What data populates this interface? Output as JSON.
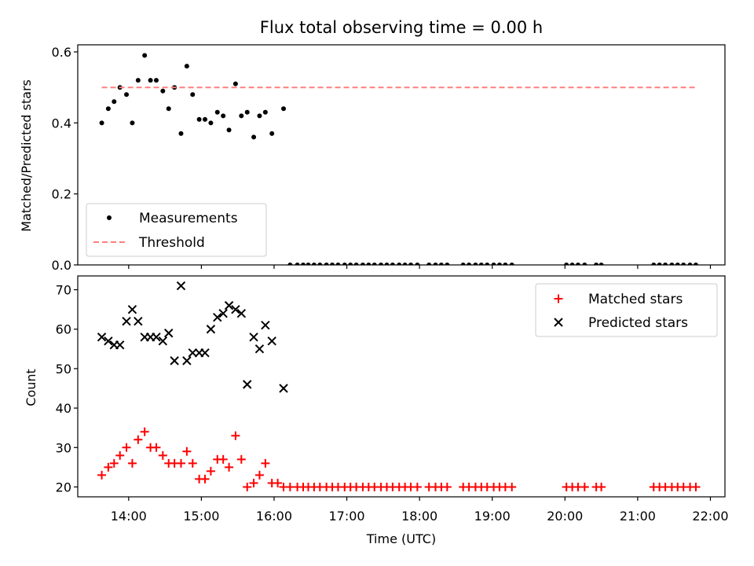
{
  "figure": {
    "title": "Flux total observing time = 0.00 h",
    "xlabel": "Time (UTC)",
    "xticks": [
      "14:00",
      "15:00",
      "16:00",
      "17:00",
      "18:00",
      "19:00",
      "20:00",
      "21:00",
      "22:00"
    ]
  },
  "chart_data": [
    {
      "type": "scatter",
      "name": "ratio-panel",
      "ylabel": "Matched/Predicted stars",
      "ylim": [
        0,
        0.62
      ],
      "yticks": [
        "0.0",
        "0.2",
        "0.4",
        "0.6"
      ],
      "ytick_values": [
        0,
        0.2,
        0.4,
        0.6
      ],
      "xlim_hours": [
        13.3,
        22.2
      ],
      "legend": {
        "placement": "lower-left",
        "entries": [
          "Measurements",
          "Threshold"
        ]
      },
      "series": [
        {
          "name": "Measurements",
          "kind": "points",
          "color": "#000000",
          "x": [
            13.63,
            13.72,
            13.8,
            13.88,
            13.97,
            14.05,
            14.13,
            14.22,
            14.3,
            14.38,
            14.47,
            14.55,
            14.63,
            14.72,
            14.8,
            14.88,
            14.97,
            15.05,
            15.13,
            15.22,
            15.3,
            15.38,
            15.47,
            15.55,
            15.63,
            15.72,
            15.8,
            15.88,
            15.97,
            16.13,
            16.22,
            16.32,
            16.4,
            16.47,
            16.55,
            16.63,
            16.72,
            16.8,
            16.88,
            16.97,
            17.05,
            17.13,
            17.22,
            17.3,
            17.38,
            17.47,
            17.55,
            17.63,
            17.72,
            17.8,
            17.88,
            17.97,
            18.13,
            18.22,
            18.3,
            18.38,
            18.6,
            18.68,
            18.77,
            18.85,
            18.93,
            19.02,
            19.1,
            19.18,
            19.27,
            20.02,
            20.1,
            20.18,
            20.27,
            20.43,
            20.5,
            21.22,
            21.3,
            21.38,
            21.47,
            21.55,
            21.63,
            21.72,
            21.8
          ],
          "y": [
            0.4,
            0.44,
            0.46,
            0.5,
            0.48,
            0.4,
            0.52,
            0.59,
            0.52,
            0.52,
            0.49,
            0.44,
            0.5,
            0.37,
            0.56,
            0.48,
            0.41,
            0.41,
            0.4,
            0.43,
            0.42,
            0.38,
            0.51,
            0.42,
            0.43,
            0.36,
            0.42,
            0.43,
            0.37,
            0.44,
            0,
            0,
            0,
            0,
            0,
            0,
            0,
            0,
            0,
            0,
            0,
            0,
            0,
            0,
            0,
            0,
            0,
            0,
            0,
            0,
            0,
            0,
            0,
            0,
            0,
            0,
            0,
            0,
            0,
            0,
            0,
            0,
            0,
            0,
            0,
            0,
            0,
            0,
            0,
            0,
            0,
            0,
            0,
            0,
            0,
            0,
            0,
            0,
            0
          ]
        },
        {
          "name": "Threshold",
          "kind": "dashed-line",
          "color": "#ff7f7f",
          "x": [
            13.63,
            21.8
          ],
          "y": [
            0.5,
            0.5
          ]
        }
      ]
    },
    {
      "type": "scatter",
      "name": "count-panel",
      "ylabel": "Count",
      "ylim": [
        17.5,
        73.5
      ],
      "yticks": [
        "20",
        "30",
        "40",
        "50",
        "60",
        "70"
      ],
      "ytick_values": [
        20,
        30,
        40,
        50,
        60,
        70
      ],
      "xlim_hours": [
        13.3,
        22.2
      ],
      "legend": {
        "placement": "upper-right",
        "entries": [
          "Matched stars",
          "Predicted stars"
        ]
      },
      "series": [
        {
          "name": "Matched stars",
          "marker": "plus",
          "color": "#ff0000",
          "x": [
            13.63,
            13.72,
            13.8,
            13.88,
            13.97,
            14.05,
            14.13,
            14.22,
            14.3,
            14.38,
            14.47,
            14.55,
            14.63,
            14.72,
            14.8,
            14.88,
            14.97,
            15.05,
            15.13,
            15.22,
            15.3,
            15.38,
            15.47,
            15.55,
            15.63,
            15.72,
            15.8,
            15.88,
            15.97,
            16.05,
            16.13,
            16.22,
            16.32,
            16.4,
            16.47,
            16.55,
            16.63,
            16.72,
            16.8,
            16.88,
            16.97,
            17.05,
            17.13,
            17.22,
            17.3,
            17.38,
            17.47,
            17.55,
            17.63,
            17.72,
            17.8,
            17.88,
            17.97,
            18.13,
            18.22,
            18.3,
            18.38,
            18.6,
            18.68,
            18.77,
            18.85,
            18.93,
            19.02,
            19.1,
            19.18,
            19.27,
            20.02,
            20.1,
            20.18,
            20.27,
            20.43,
            20.5,
            21.22,
            21.3,
            21.38,
            21.47,
            21.55,
            21.63,
            21.72,
            21.8
          ],
          "y": [
            23,
            25,
            26,
            28,
            30,
            26,
            32,
            34,
            30,
            30,
            28,
            26,
            26,
            26,
            29,
            26,
            22,
            22,
            24,
            27,
            27,
            25,
            33,
            27,
            20,
            21,
            23,
            26,
            21,
            21,
            20,
            20,
            20,
            20,
            20,
            20,
            20,
            20,
            20,
            20,
            20,
            20,
            20,
            20,
            20,
            20,
            20,
            20,
            20,
            20,
            20,
            20,
            20,
            20,
            20,
            20,
            20,
            20,
            20,
            20,
            20,
            20,
            20,
            20,
            20,
            20,
            20,
            20,
            20,
            20,
            20,
            20,
            20,
            20,
            20,
            20,
            20,
            20,
            20,
            20
          ]
        },
        {
          "name": "Predicted stars",
          "marker": "x",
          "color": "#000000",
          "x": [
            13.63,
            13.72,
            13.8,
            13.88,
            13.97,
            14.05,
            14.13,
            14.22,
            14.3,
            14.38,
            14.47,
            14.55,
            14.63,
            14.72,
            14.8,
            14.88,
            14.97,
            15.05,
            15.13,
            15.22,
            15.3,
            15.38,
            15.47,
            15.55,
            15.63,
            15.72,
            15.8,
            15.88,
            15.97,
            16.13
          ],
          "y": [
            58,
            57,
            56,
            56,
            62,
            65,
            62,
            58,
            58,
            58,
            57,
            59,
            52,
            71,
            52,
            54,
            54,
            54,
            60,
            63,
            64,
            66,
            65,
            64,
            46,
            58,
            55,
            61,
            57,
            45
          ]
        }
      ]
    }
  ]
}
